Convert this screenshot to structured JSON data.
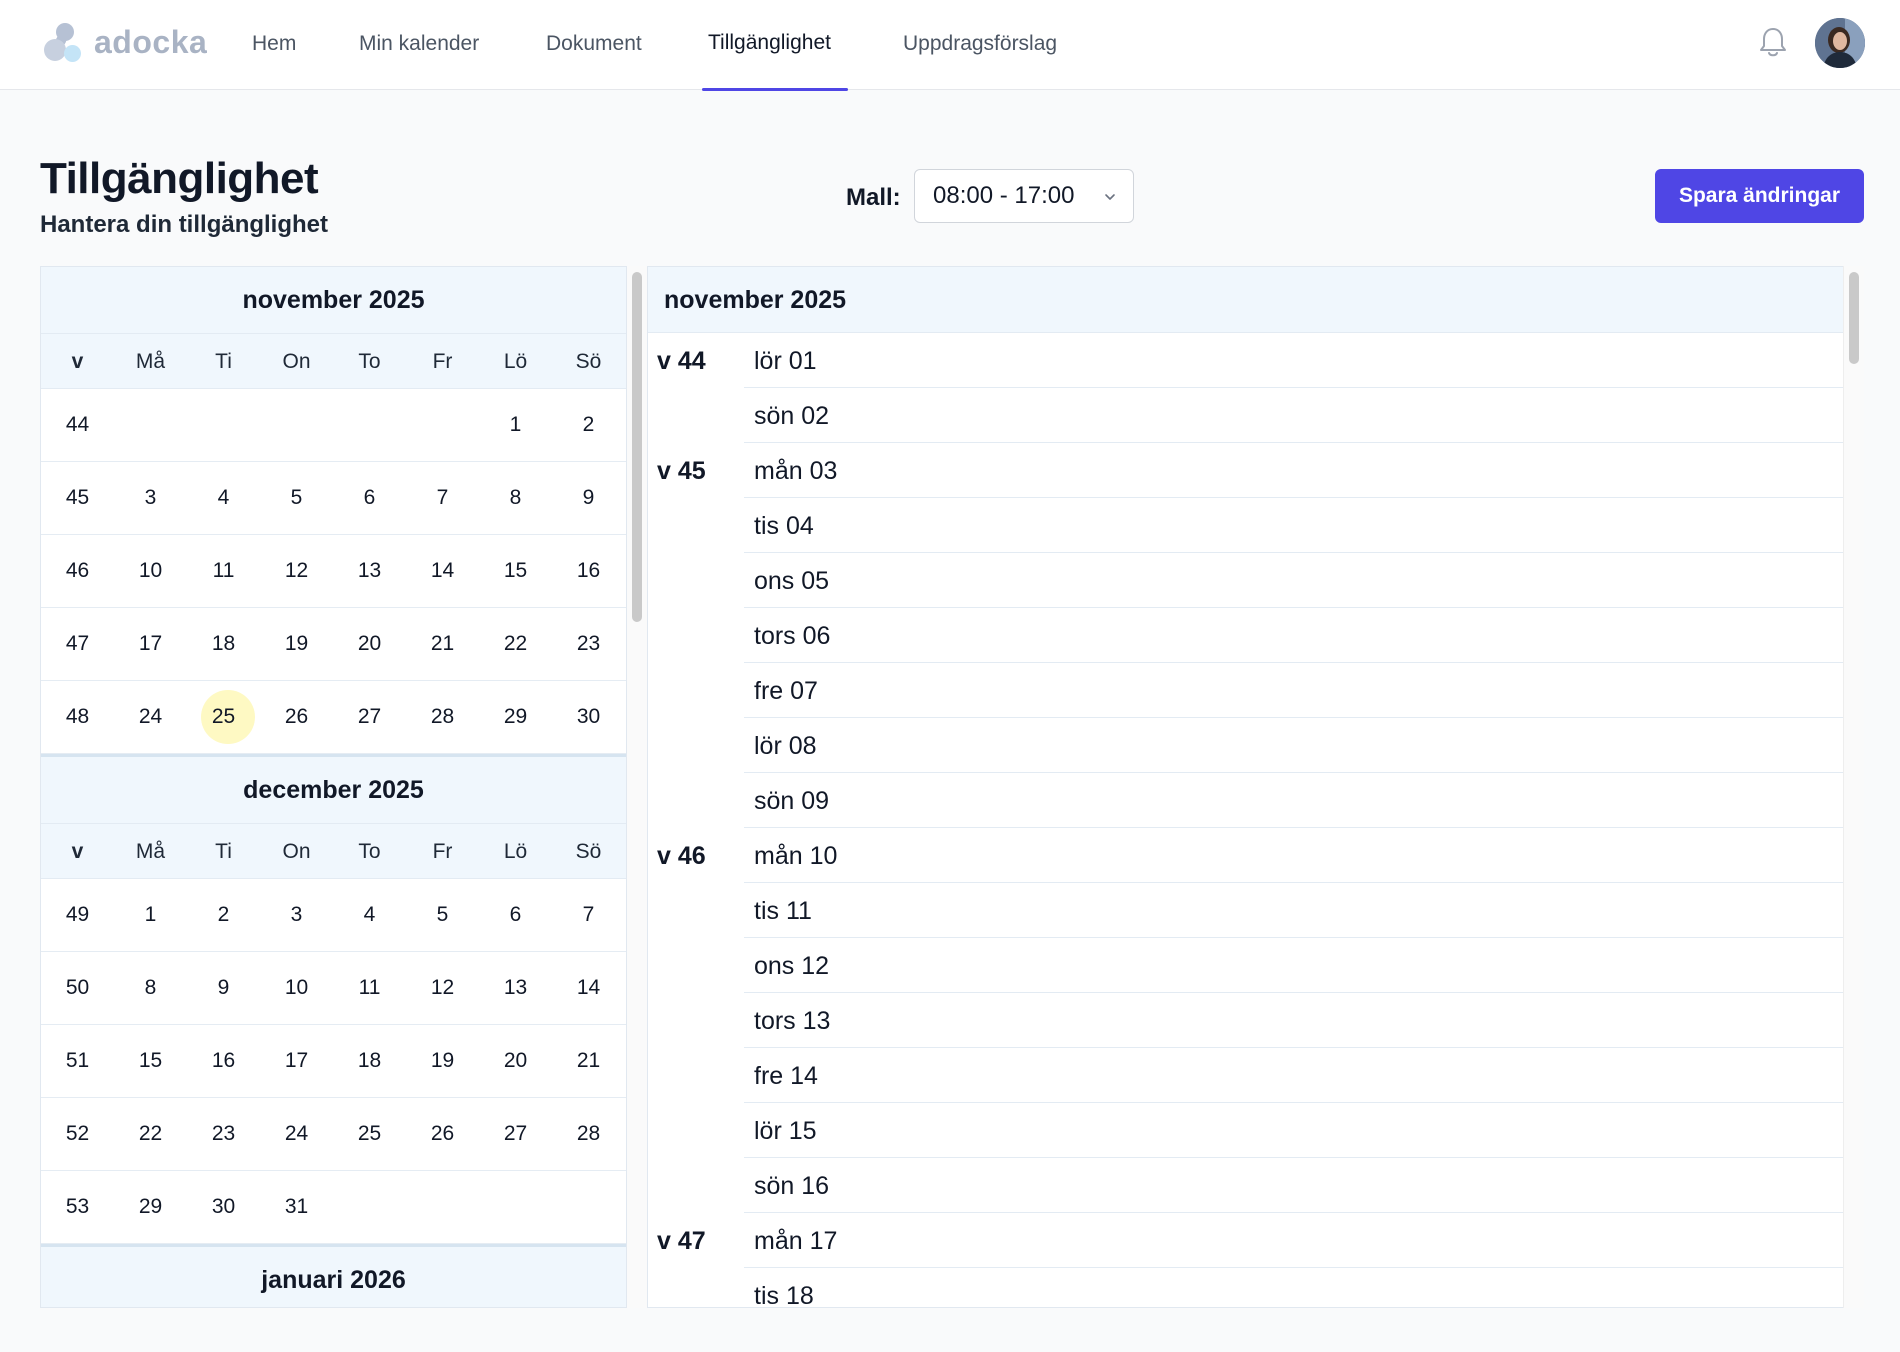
{
  "app": {
    "logo_text": "adocka",
    "nav": [
      {
        "label": "Hem",
        "active": false
      },
      {
        "label": "Min kalender",
        "active": false
      },
      {
        "label": "Dokument",
        "active": false
      },
      {
        "label": "Tillgänglighet",
        "active": true
      },
      {
        "label": "Uppdragsförslag",
        "active": false
      }
    ],
    "icons": {
      "notifications": "bell-icon",
      "user": "avatar",
      "select": "chevron-down-icon"
    },
    "accent_color": "#4f46e5",
    "today_highlight_color": "#fef9c3"
  },
  "header": {
    "title": "Tillgänglighet",
    "subtitle": "Hantera din tillgänglighet",
    "template_label": "Mall:",
    "template_value": "08:00 - 17:00",
    "save_label": "Spara ändringar"
  },
  "mini_calendar": {
    "weekday_headers": [
      "v",
      "Må",
      "Ti",
      "On",
      "To",
      "Fr",
      "Lö",
      "Sö"
    ],
    "months": [
      {
        "title": "november 2025",
        "weeks": [
          [
            "44",
            "",
            "",
            "",
            "",
            "",
            "1",
            "2"
          ],
          [
            "45",
            "3",
            "4",
            "5",
            "6",
            "7",
            "8",
            "9"
          ],
          [
            "46",
            "10",
            "11",
            "12",
            "13",
            "14",
            "15",
            "16"
          ],
          [
            "47",
            "17",
            "18",
            "19",
            "20",
            "21",
            "22",
            "23"
          ],
          [
            "48",
            "24",
            "25",
            "26",
            "27",
            "28",
            "29",
            "30"
          ]
        ],
        "today": "25"
      },
      {
        "title": "december 2025",
        "weeks": [
          [
            "49",
            "1",
            "2",
            "3",
            "4",
            "5",
            "6",
            "7"
          ],
          [
            "50",
            "8",
            "9",
            "10",
            "11",
            "12",
            "13",
            "14"
          ],
          [
            "51",
            "15",
            "16",
            "17",
            "18",
            "19",
            "20",
            "21"
          ],
          [
            "52",
            "22",
            "23",
            "24",
            "25",
            "26",
            "27",
            "28"
          ],
          [
            "53",
            "29",
            "30",
            "31",
            "",
            "",
            "",
            ""
          ]
        ],
        "today": null
      },
      {
        "title": "januari 2026",
        "weeks": [],
        "today": null
      }
    ]
  },
  "day_list": {
    "month_title": "november 2025",
    "rows": [
      {
        "week": "v 44",
        "day": "lör 01"
      },
      {
        "week": "",
        "day": "sön 02"
      },
      {
        "week": "v 45",
        "day": "mån 03"
      },
      {
        "week": "",
        "day": "tis 04"
      },
      {
        "week": "",
        "day": "ons 05"
      },
      {
        "week": "",
        "day": "tors 06"
      },
      {
        "week": "",
        "day": "fre 07"
      },
      {
        "week": "",
        "day": "lör 08"
      },
      {
        "week": "",
        "day": "sön 09"
      },
      {
        "week": "v 46",
        "day": "mån 10"
      },
      {
        "week": "",
        "day": "tis 11"
      },
      {
        "week": "",
        "day": "ons 12"
      },
      {
        "week": "",
        "day": "tors 13"
      },
      {
        "week": "",
        "day": "fre 14"
      },
      {
        "week": "",
        "day": "lör 15"
      },
      {
        "week": "",
        "day": "sön 16"
      },
      {
        "week": "v 47",
        "day": "mån 17"
      },
      {
        "week": "",
        "day": "tis 18"
      }
    ]
  }
}
